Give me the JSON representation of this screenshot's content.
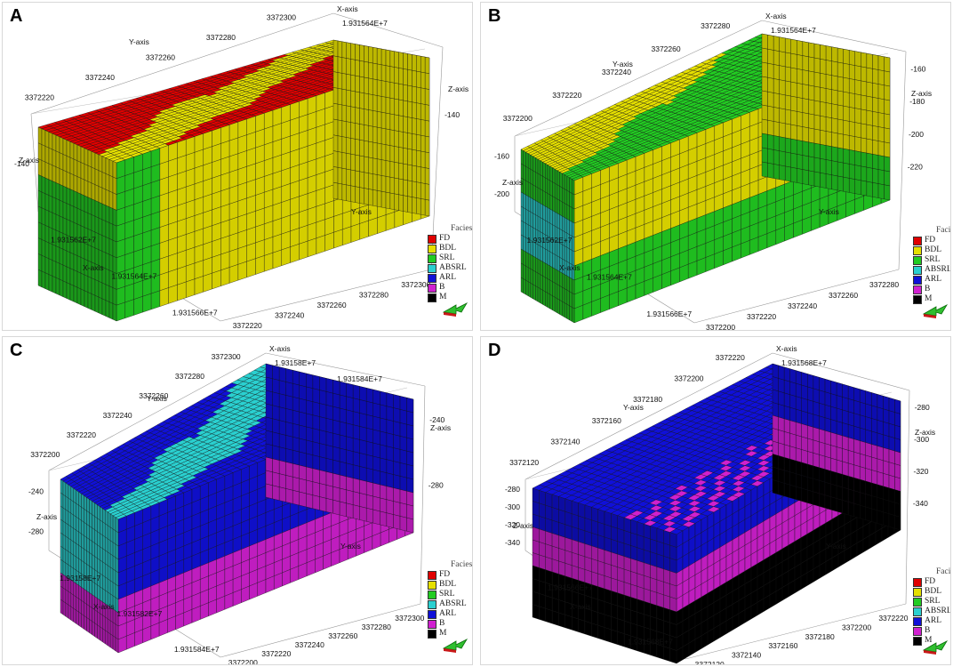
{
  "colors": {
    "FD": "#e00000",
    "BDL": "#e6e000",
    "SRL": "#22cc22",
    "ABSRL": "#2ad0d0",
    "ARL": "#1010d8",
    "B": "#d020d0",
    "M": "#000000"
  },
  "legend": {
    "title": "Facies",
    "items": [
      {
        "label": "FD",
        "key": "FD"
      },
      {
        "label": "BDL",
        "key": "BDL"
      },
      {
        "label": "SRL",
        "key": "SRL"
      },
      {
        "label": "ABSRL",
        "key": "ABSRL"
      },
      {
        "label": "ARL",
        "key": "ARL"
      },
      {
        "label": "B",
        "key": "B"
      },
      {
        "label": "M",
        "key": "M"
      }
    ]
  },
  "panels": [
    {
      "label": "A",
      "top": "FD",
      "mid": "BDL",
      "side": "BDL",
      "front": "BDL",
      "corner": "SRL",
      "bottom_band": null,
      "axes": {
        "x_title": "X-axis",
        "y_title": "Y-axis",
        "z_title": "Z-axis",
        "z_title_right": "Z-axis",
        "x_top_ticks": [
          "1.931564E+7"
        ],
        "y_left_ticks": [
          "3372300",
          "3372280",
          "3372260",
          "3372240",
          "3372220"
        ],
        "z_left_ticks": [
          "-140"
        ],
        "z_right_ticks": [
          "-140"
        ],
        "x_bottom_ticks": [
          "1.931562E+7",
          "1.931564E+7",
          "1.931566E+7"
        ],
        "y_right_ticks": [
          "3372300",
          "3372280",
          "3372260",
          "3372240",
          "3372220"
        ]
      }
    },
    {
      "label": "B",
      "top": "BDL",
      "mid": "SRL",
      "side": "BDL",
      "front": "BDL",
      "corner": "ABSRL",
      "bottom_band": "SRL",
      "axes": {
        "x_title": "X-axis",
        "y_title": "Y-axis",
        "z_title": "Z-axis",
        "z_title_right": "Z-axis",
        "x_top_ticks": [
          "1.931564E+7"
        ],
        "y_left_ticks": [
          "3372280",
          "3372260",
          "3372240",
          "3372220",
          "3372200"
        ],
        "z_left_ticks": [
          "-160",
          "-200"
        ],
        "z_right_ticks": [
          "-160",
          "-180",
          "-200",
          "-220"
        ],
        "x_bottom_ticks": [
          "1.931562E+7",
          "1.931564E+7",
          "1.931566E+7"
        ],
        "y_right_ticks": [
          "3372280",
          "3372260",
          "3372240",
          "3372220",
          "3372200"
        ]
      }
    },
    {
      "label": "C",
      "top": "ARL",
      "mid": "ABSRL",
      "side": "ARL",
      "front": "ARL",
      "corner": "ABSRL",
      "bottom_band": "B",
      "axes": {
        "x_title": "X-axis",
        "y_title": "Y-axis",
        "z_title": "Z-axis",
        "z_title_right": "Z-axis",
        "x_top_ticks": [
          "1.93158E+7",
          "1.931584E+7"
        ],
        "y_left_ticks": [
          "3372300",
          "3372280",
          "3372260",
          "3372240",
          "3372220",
          "3372200"
        ],
        "z_left_ticks": [
          "-240",
          "-280"
        ],
        "z_right_ticks": [
          "-240",
          "-280"
        ],
        "x_bottom_ticks": [
          "1.93158E+7",
          "1.931582E+7",
          "1.931584E+7"
        ],
        "y_right_ticks": [
          "3372300",
          "3372280",
          "3372260",
          "3372240",
          "3372220",
          "3372200"
        ]
      }
    },
    {
      "label": "D",
      "top": "ARL",
      "mid": "ARL",
      "side": "B",
      "front": "B",
      "corner": "B",
      "bottom_band": "M",
      "axes": {
        "x_title": "X-axis",
        "y_title": "Y-axis",
        "z_title": "Z-axis",
        "z_title_right": "Z-axis",
        "x_top_ticks": [
          "1.931568E+7"
        ],
        "y_left_ticks": [
          "3372220",
          "3372200",
          "3372180",
          "3372160",
          "3372140",
          "3372120"
        ],
        "z_left_ticks": [
          "-280",
          "-300",
          "-320",
          "-340"
        ],
        "z_right_ticks": [
          "-280",
          "-300",
          "-320",
          "-340"
        ],
        "x_bottom_ticks": [
          "1.931566E+7",
          "1.931568E+7"
        ],
        "y_right_ticks": [
          "3372220",
          "3372200",
          "3372180",
          "3372160",
          "3372140",
          "3372120"
        ]
      }
    }
  ]
}
